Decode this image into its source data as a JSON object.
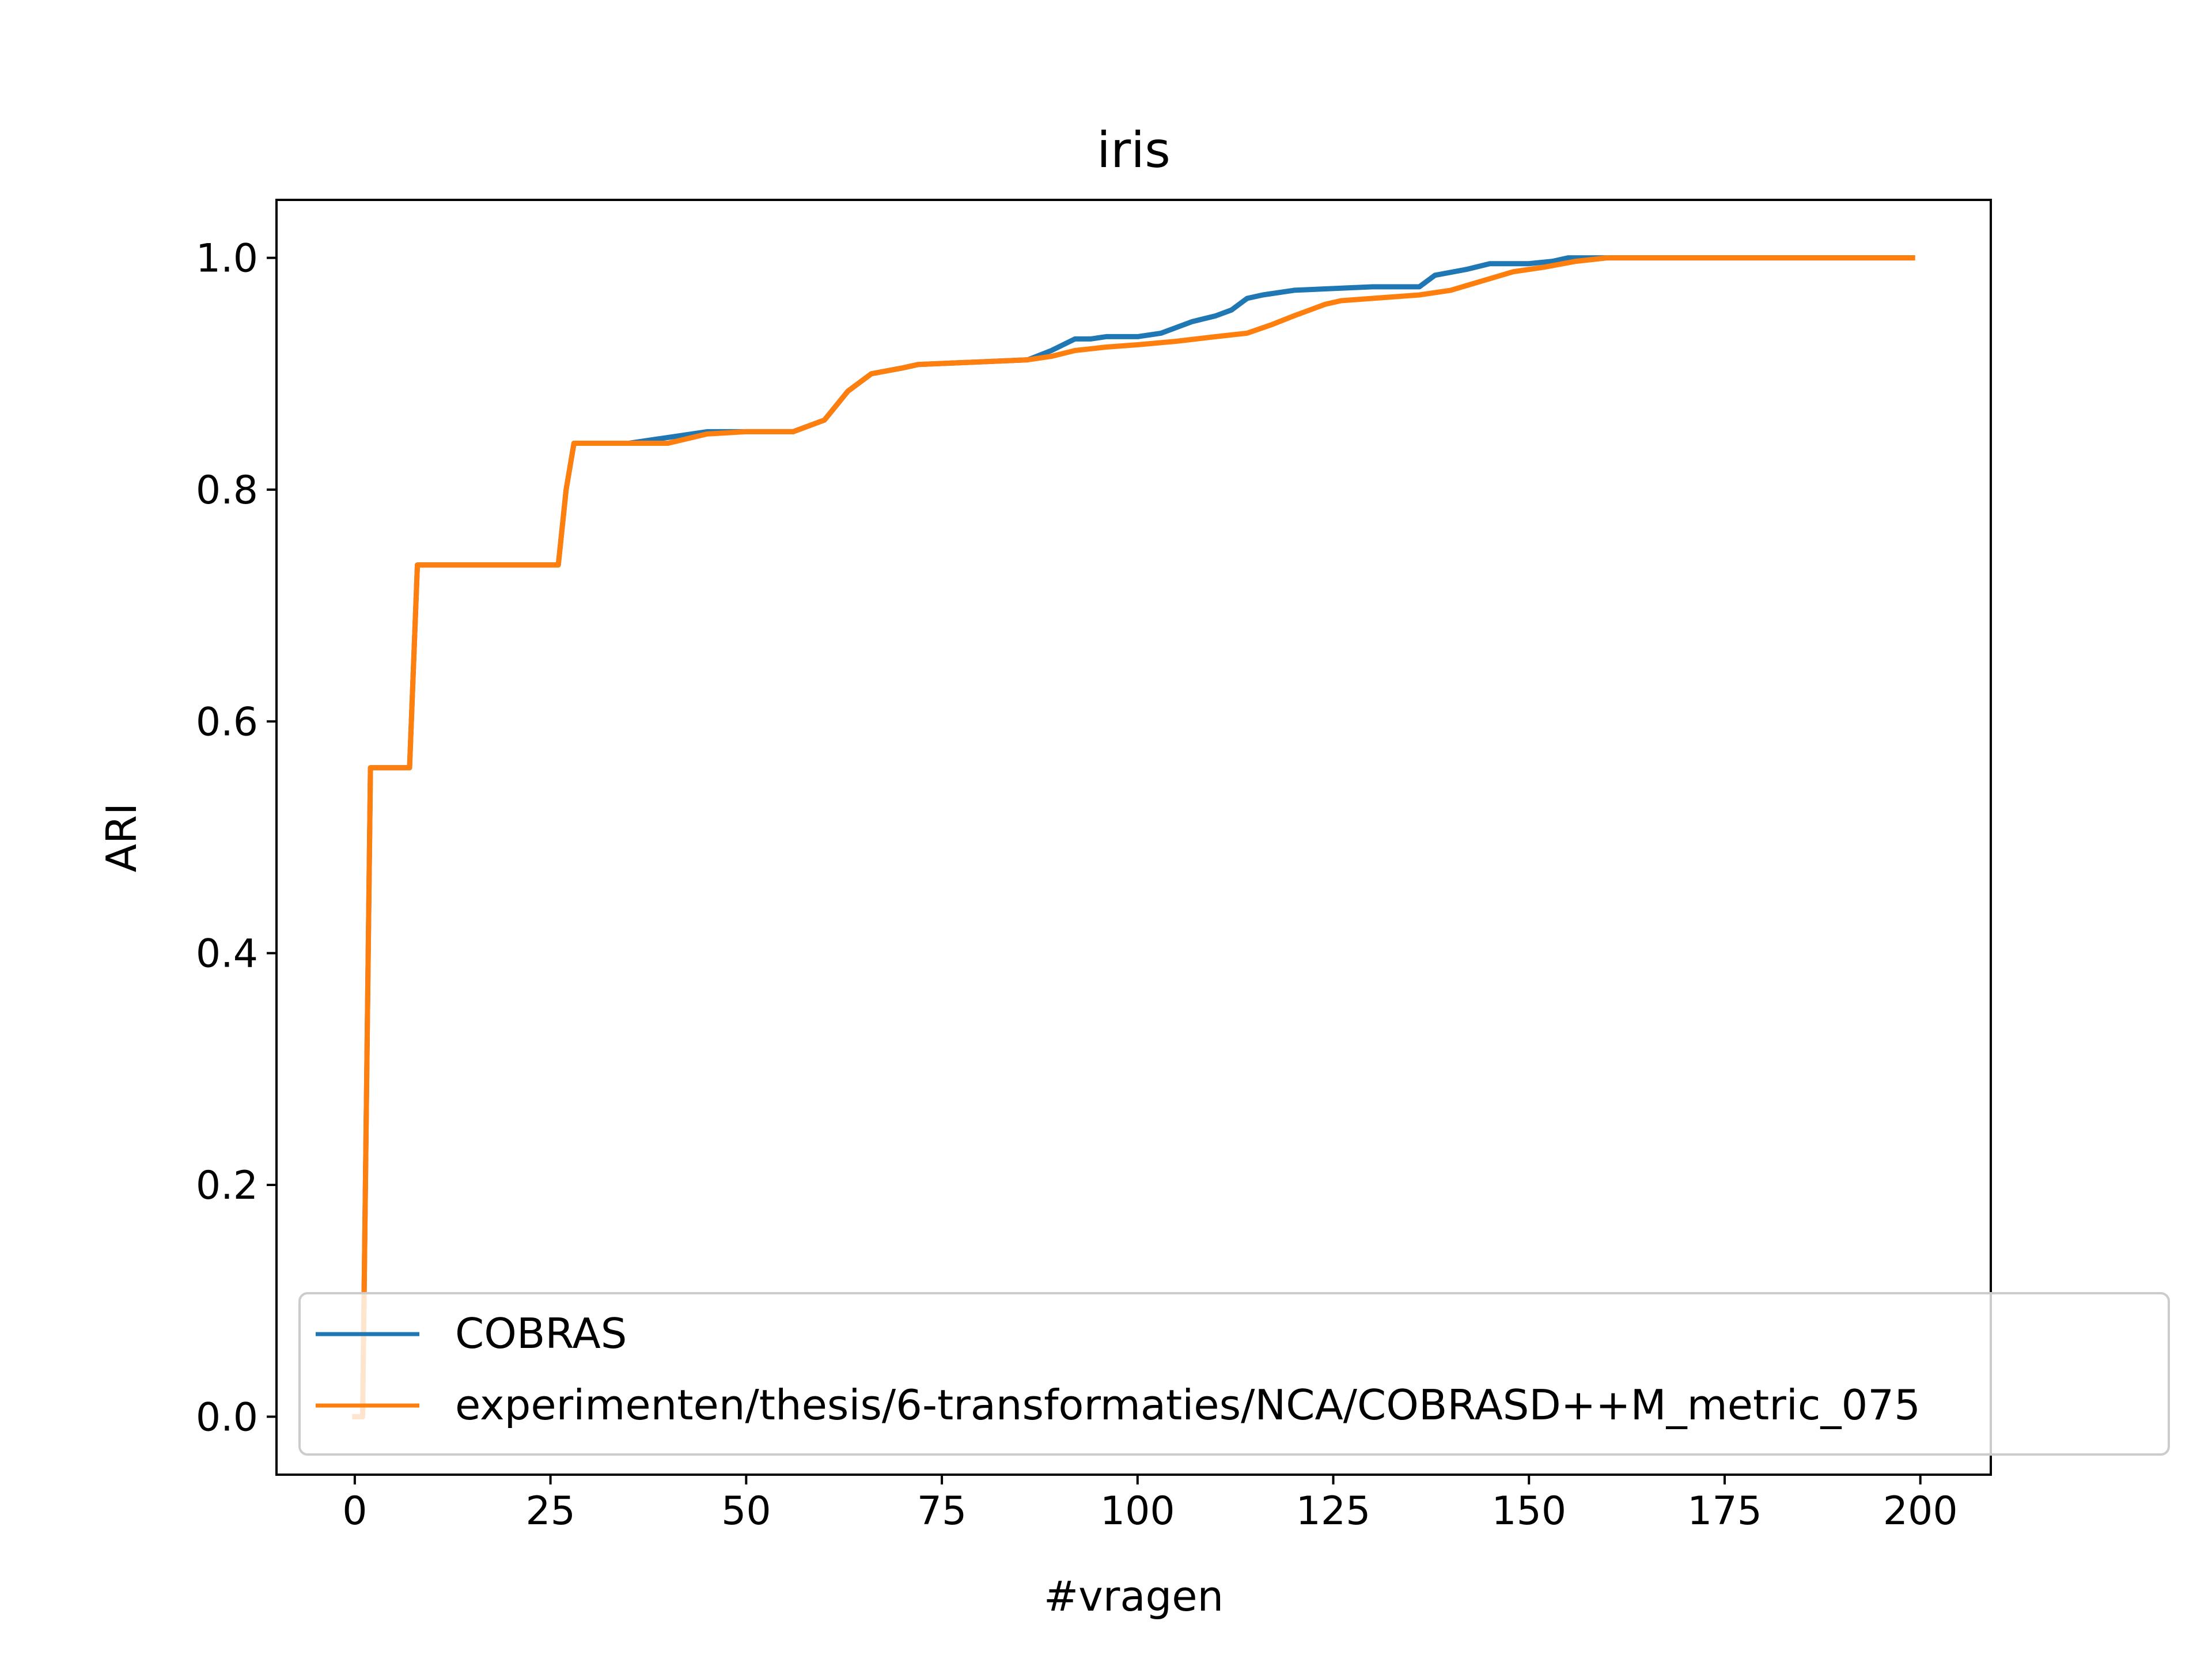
{
  "chart_data": {
    "type": "line",
    "title": "iris",
    "xlabel": "#vragen",
    "ylabel": "ARI",
    "xlim": [
      -10,
      209
    ],
    "ylim": [
      -0.05,
      1.05
    ],
    "xticks": [
      0,
      25,
      50,
      75,
      100,
      125,
      150,
      175,
      200
    ],
    "xtick_labels": [
      "0",
      "25",
      "50",
      "75",
      "100",
      "125",
      "150",
      "175",
      "200"
    ],
    "yticks": [
      0.0,
      0.2,
      0.4,
      0.6,
      0.8,
      1.0
    ],
    "ytick_labels": [
      "0.0",
      "0.2",
      "0.4",
      "0.6",
      "0.8",
      "1.0"
    ],
    "grid": false,
    "legend_position": "lower-right",
    "series": [
      {
        "name": "COBRAS",
        "color": "#1f77b4",
        "x": [
          0,
          1,
          2,
          7,
          8,
          26,
          27,
          28,
          35,
          45,
          50,
          56,
          60,
          63,
          66,
          70,
          72,
          79,
          86,
          89,
          92,
          94,
          96,
          100,
          103,
          105,
          107,
          110,
          112,
          114,
          116,
          120,
          130,
          136,
          138,
          142,
          145,
          150,
          153,
          155,
          160,
          170,
          199
        ],
        "y": [
          0.0,
          0.0,
          0.56,
          0.56,
          0.735,
          0.735,
          0.8,
          0.84,
          0.84,
          0.85,
          0.85,
          0.85,
          0.86,
          0.885,
          0.9,
          0.905,
          0.908,
          0.91,
          0.912,
          0.92,
          0.93,
          0.93,
          0.932,
          0.932,
          0.935,
          0.94,
          0.945,
          0.95,
          0.955,
          0.965,
          0.968,
          0.972,
          0.975,
          0.975,
          0.985,
          0.99,
          0.995,
          0.995,
          0.997,
          1.0,
          1.0,
          1.0,
          1.0
        ]
      },
      {
        "name": "experimenten/thesis/6-transformaties/NCA/COBRASD++M_metric_075",
        "color": "#ff7f0e",
        "x": [
          0,
          1,
          2,
          7,
          8,
          26,
          27,
          28,
          35,
          40,
          45,
          50,
          56,
          60,
          63,
          66,
          70,
          72,
          79,
          86,
          89,
          92,
          96,
          100,
          105,
          110,
          114,
          117,
          120,
          124,
          126,
          130,
          136,
          140,
          144,
          148,
          152,
          156,
          160,
          170,
          199
        ],
        "y": [
          0.0,
          0.0,
          0.56,
          0.56,
          0.735,
          0.735,
          0.8,
          0.84,
          0.84,
          0.84,
          0.848,
          0.85,
          0.85,
          0.86,
          0.885,
          0.9,
          0.905,
          0.908,
          0.91,
          0.912,
          0.915,
          0.92,
          0.923,
          0.925,
          0.928,
          0.932,
          0.935,
          0.942,
          0.95,
          0.96,
          0.963,
          0.965,
          0.968,
          0.972,
          0.98,
          0.988,
          0.992,
          0.997,
          1.0,
          1.0,
          1.0
        ]
      }
    ]
  }
}
